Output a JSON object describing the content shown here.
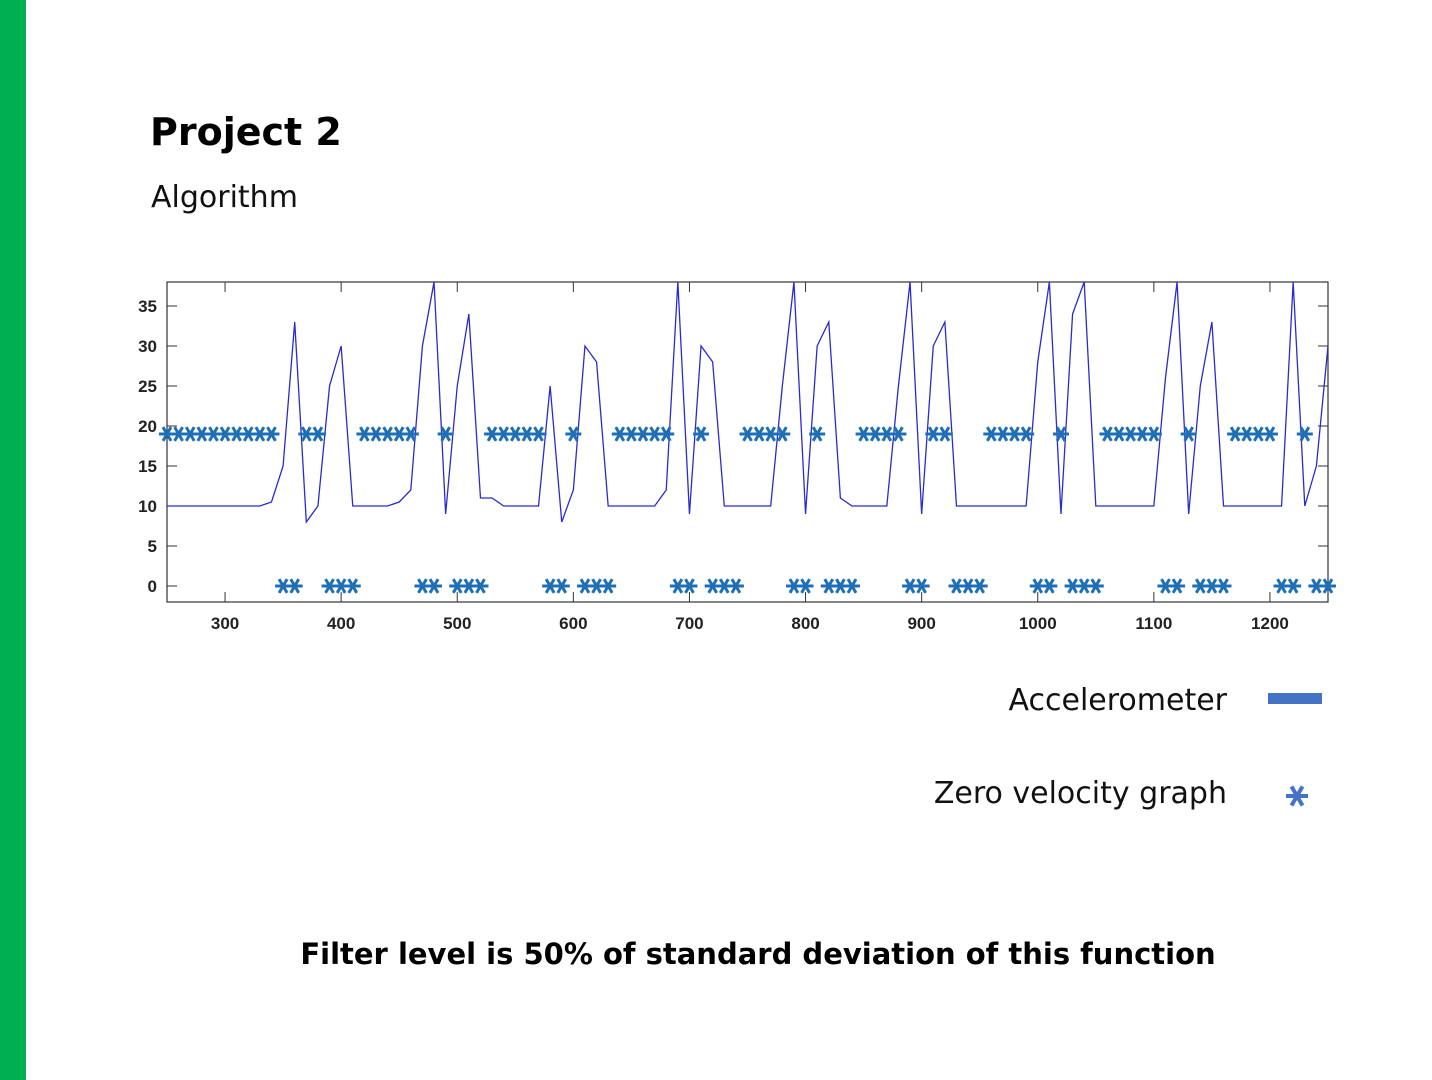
{
  "title": "Project 2",
  "subtitle": "Algorithm",
  "note": "Filter level is 50% of standard deviation of this function",
  "chart_data": {
    "type": "line",
    "x": [
      250,
      260,
      270,
      280,
      290,
      300,
      310,
      320,
      330,
      340,
      350,
      360,
      370,
      380,
      390,
      400,
      410,
      420,
      430,
      440,
      450,
      460,
      470,
      480,
      490,
      500,
      510,
      520,
      530,
      540,
      550,
      560,
      570,
      580,
      590,
      600,
      610,
      620,
      630,
      640,
      650,
      660,
      670,
      680,
      690,
      700,
      710,
      720,
      730,
      740,
      750,
      760,
      770,
      780,
      790,
      800,
      810,
      820,
      830,
      840,
      850,
      860,
      870,
      880,
      890,
      900,
      910,
      920,
      930,
      940,
      950,
      960,
      970,
      980,
      990,
      1000,
      1010,
      1020,
      1030,
      1040,
      1050,
      1060,
      1070,
      1080,
      1090,
      1100,
      1110,
      1120,
      1130,
      1140,
      1150,
      1160,
      1170,
      1180,
      1190,
      1200,
      1210,
      1220,
      1230,
      1240,
      1250
    ],
    "series": [
      {
        "name": "Accelerometer",
        "color": "#2a2ad0",
        "legend_color": "#4472c4",
        "marker": "line",
        "values": [
          10,
          10,
          10,
          10,
          10,
          10,
          10,
          10,
          10,
          10.5,
          15,
          33,
          8,
          10,
          25,
          30,
          10,
          10,
          10,
          10,
          10.5,
          12,
          30,
          38,
          9,
          25,
          34,
          11,
          11,
          10,
          10,
          10,
          10,
          25,
          8,
          12,
          30,
          28,
          10,
          10,
          10,
          10,
          10,
          12,
          38,
          9,
          30,
          28,
          10,
          10,
          10,
          10,
          10,
          25,
          38,
          9,
          30,
          33,
          11,
          10,
          10,
          10,
          10,
          25,
          38,
          9,
          30,
          33,
          10,
          10,
          10,
          10,
          10,
          10,
          10,
          28,
          38,
          9,
          34,
          38,
          10,
          10,
          10,
          10,
          10,
          10,
          26,
          38,
          9,
          25,
          33,
          10,
          10,
          10,
          10,
          10,
          10,
          38,
          10,
          15,
          30
        ]
      },
      {
        "name": "Zero velocity graph",
        "color": "#1f6fb5",
        "legend_color": "#4472c4",
        "marker": "asterisk",
        "values": [
          19,
          19,
          19,
          19,
          19,
          19,
          19,
          19,
          19,
          19,
          0,
          0,
          19,
          19,
          0,
          0,
          0,
          19,
          19,
          19,
          19,
          19,
          0,
          0,
          19,
          0,
          0,
          0,
          19,
          19,
          19,
          19,
          19,
          0,
          0,
          19,
          0,
          0,
          0,
          19,
          19,
          19,
          19,
          19,
          0,
          0,
          19,
          0,
          0,
          0,
          19,
          19,
          19,
          19,
          0,
          0,
          19,
          0,
          0,
          0,
          19,
          19,
          19,
          19,
          0,
          0,
          19,
          19,
          0,
          0,
          0,
          19,
          19,
          19,
          19,
          0,
          0,
          19,
          0,
          0,
          0,
          19,
          19,
          19,
          19,
          19,
          0,
          0,
          19,
          0,
          0,
          0,
          19,
          19,
          19,
          19,
          0,
          0,
          19,
          0,
          0
        ]
      }
    ],
    "xlim": [
      250,
      1250
    ],
    "xticks": [
      300,
      400,
      500,
      600,
      700,
      800,
      900,
      1000,
      1100,
      1200
    ],
    "ylim": [
      -2,
      38
    ],
    "yticks": [
      0,
      5,
      10,
      15,
      20,
      25,
      30,
      35
    ],
    "grid": false
  }
}
